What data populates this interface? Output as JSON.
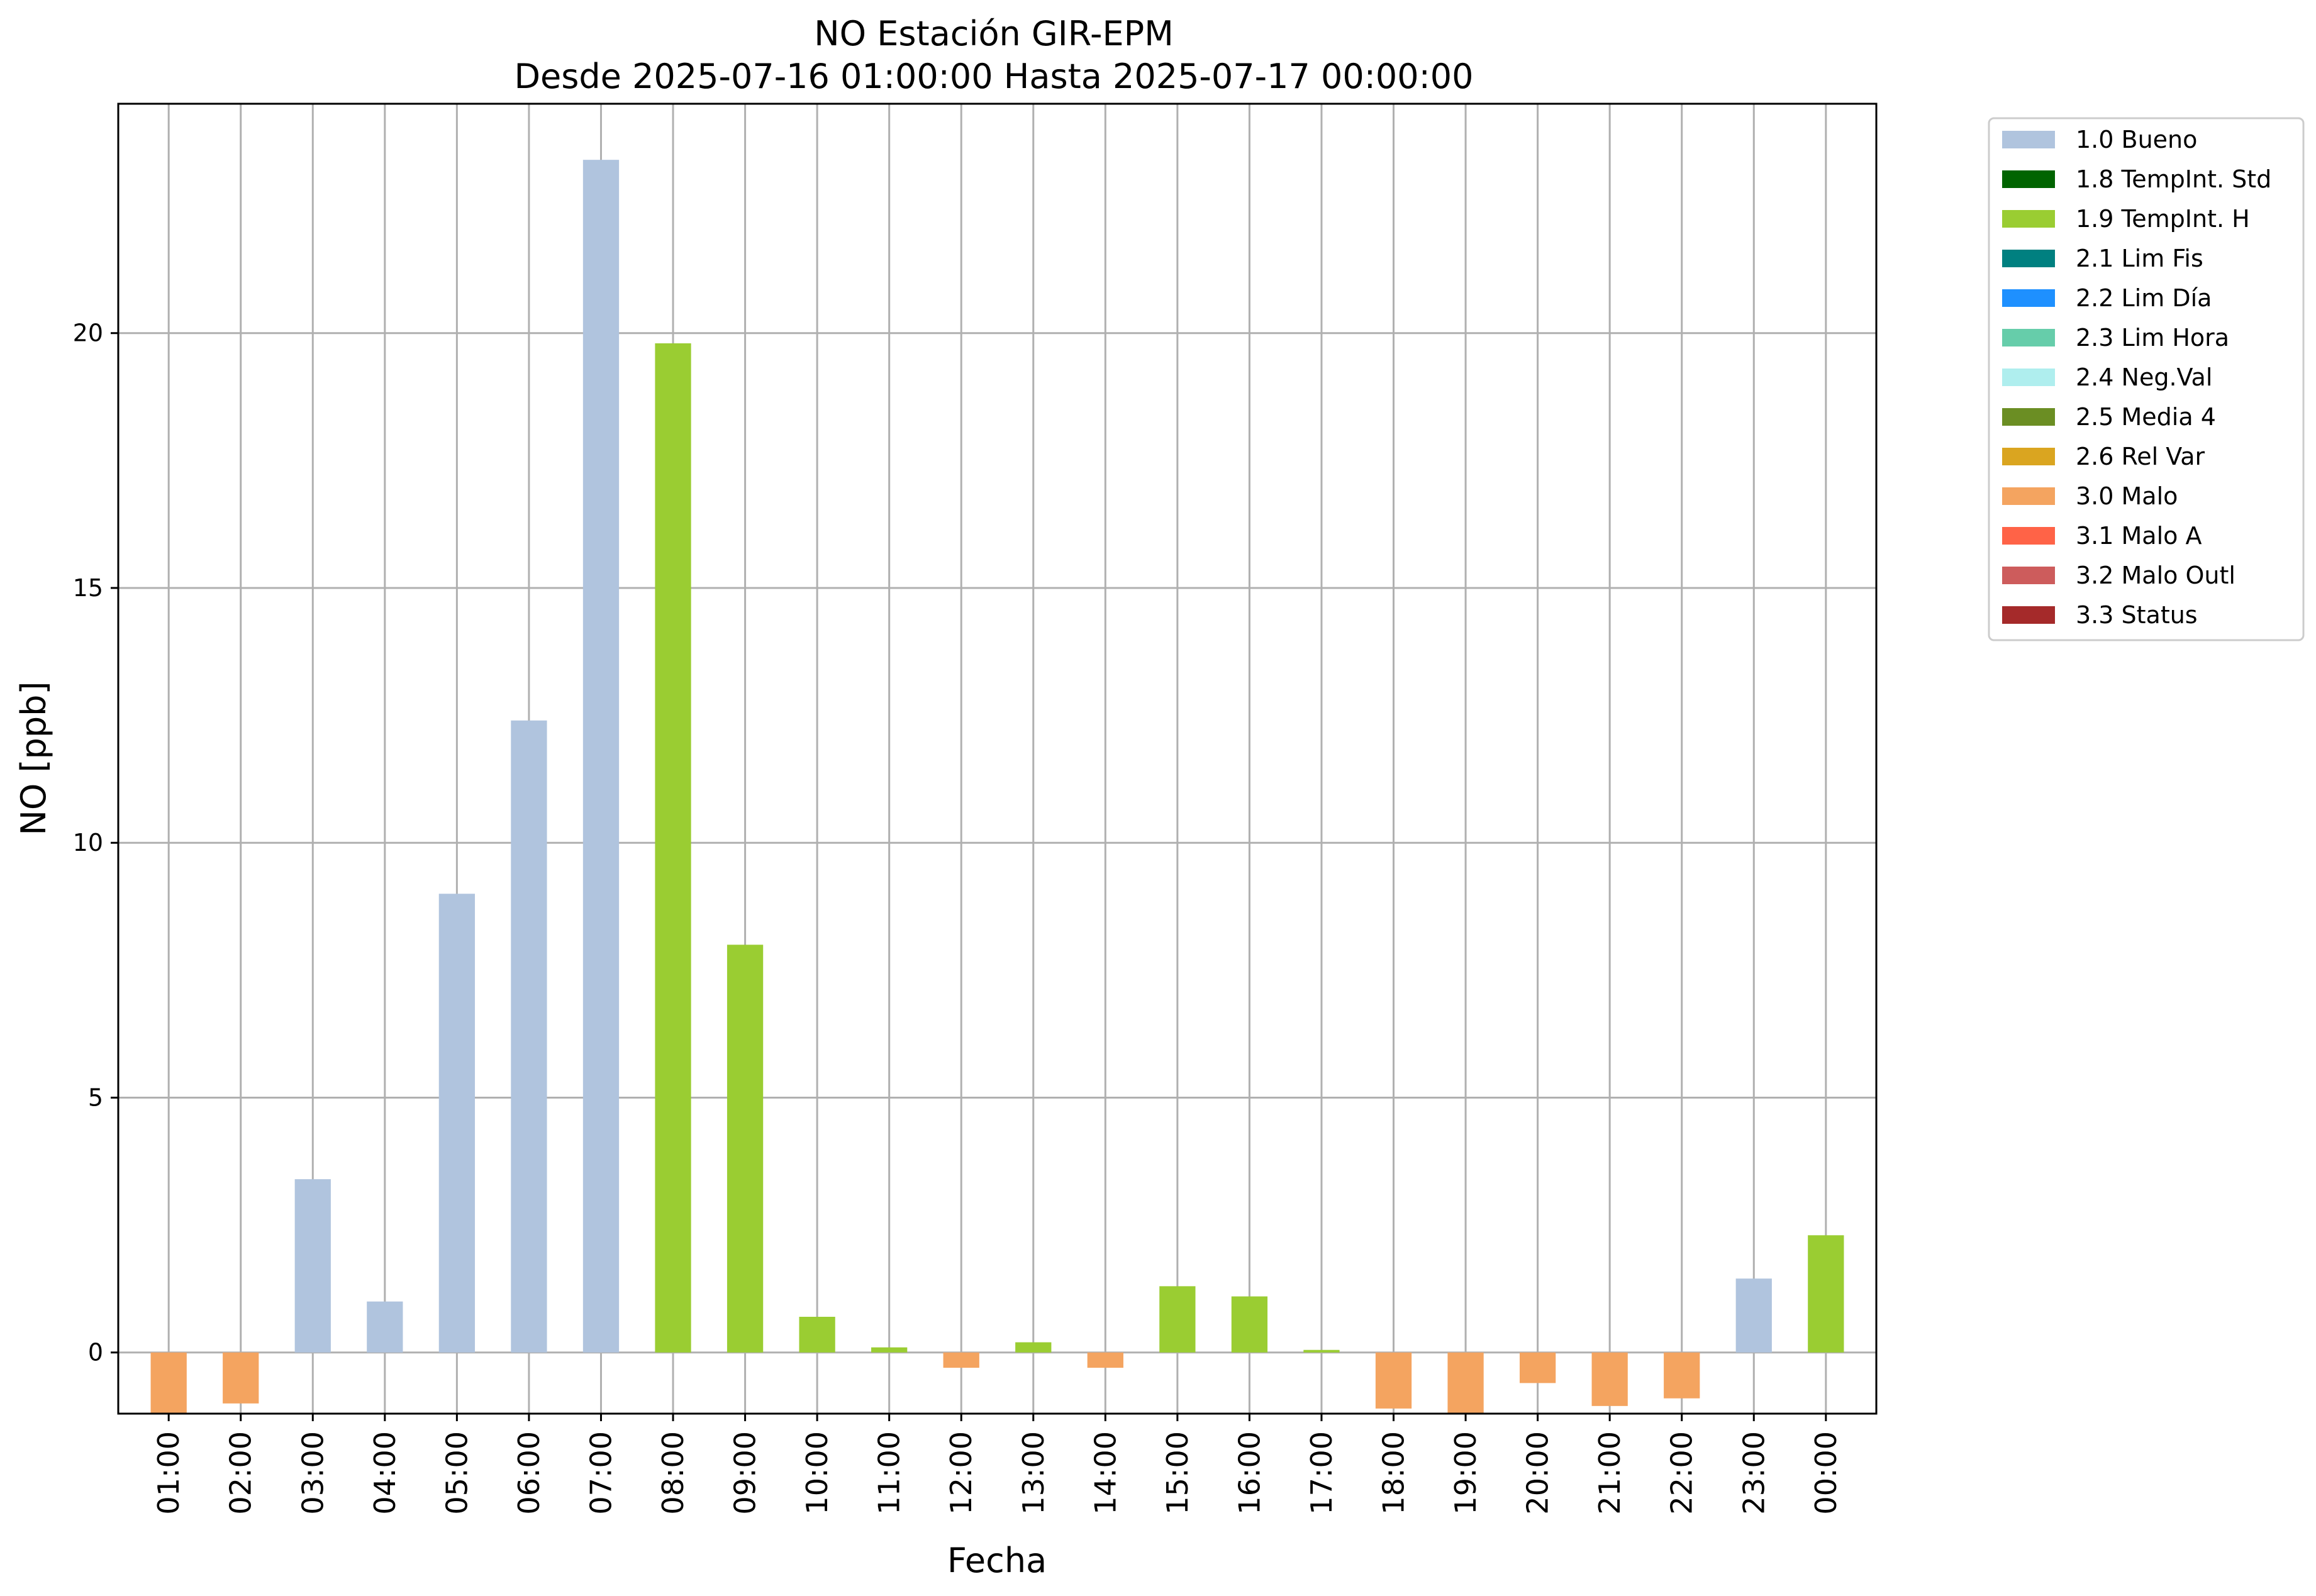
{
  "chart_data": {
    "type": "bar",
    "title": "NO Estación GIR-EPM",
    "subtitle": "Desde 2025-07-16 01:00:00 Hasta 2025-07-17 00:00:00",
    "xlabel": "Fecha",
    "ylabel": "NO [ppb]",
    "ylim": [
      -1.2,
      24.5
    ],
    "yticks": [
      0,
      5,
      10,
      15,
      20
    ],
    "grid": true,
    "legend_position": "outside-right",
    "categories": [
      "01:00",
      "02:00",
      "03:00",
      "04:00",
      "05:00",
      "06:00",
      "07:00",
      "08:00",
      "09:00",
      "10:00",
      "11:00",
      "12:00",
      "13:00",
      "14:00",
      "15:00",
      "16:00",
      "17:00",
      "18:00",
      "19:00",
      "20:00",
      "21:00",
      "22:00",
      "23:00",
      "00:00"
    ],
    "values": [
      -1.2,
      -1.0,
      3.4,
      1.0,
      9.0,
      12.4,
      23.4,
      19.8,
      8.0,
      0.7,
      0.1,
      -0.3,
      0.2,
      -0.3,
      1.3,
      1.1,
      0.05,
      -1.1,
      -1.2,
      -0.6,
      -1.05,
      -0.9,
      1.45,
      2.3
    ],
    "flags": [
      "3.0 Malo",
      "3.0 Malo",
      "1.0 Bueno",
      "1.0 Bueno",
      "1.0 Bueno",
      "1.0 Bueno",
      "1.0 Bueno",
      "1.9 TempInt. H",
      "1.9 TempInt. H",
      "1.9 TempInt. H",
      "1.9 TempInt. H",
      "3.0 Malo",
      "1.9 TempInt. H",
      "3.0 Malo",
      "1.9 TempInt. H",
      "1.9 TempInt. H",
      "1.9 TempInt. H",
      "3.0 Malo",
      "3.0 Malo",
      "3.0 Malo",
      "3.0 Malo",
      "3.0 Malo",
      "1.0 Bueno",
      "1.9 TempInt. H"
    ],
    "legend": [
      {
        "label": "1.0 Bueno",
        "color": "#b0c4de"
      },
      {
        "label": "1.8 TempInt. Std",
        "color": "#006400"
      },
      {
        "label": "1.9 TempInt. H",
        "color": "#9acd32"
      },
      {
        "label": "2.1 Lim Fis",
        "color": "#008080"
      },
      {
        "label": "2.2 Lim Día",
        "color": "#1e90ff"
      },
      {
        "label": "2.3 Lim Hora",
        "color": "#66cdaa"
      },
      {
        "label": "2.4 Neg.Val",
        "color": "#afeeee"
      },
      {
        "label": "2.5 Media 4",
        "color": "#6b8e23"
      },
      {
        "label": "2.6 Rel Var",
        "color": "#daa520"
      },
      {
        "label": "3.0 Malo",
        "color": "#f4a460"
      },
      {
        "label": "3.1 Malo A",
        "color": "#ff6347"
      },
      {
        "label": "3.2 Malo Outl",
        "color": "#cd5c5c"
      },
      {
        "label": "3.3 Status",
        "color": "#a52a2a"
      }
    ]
  }
}
